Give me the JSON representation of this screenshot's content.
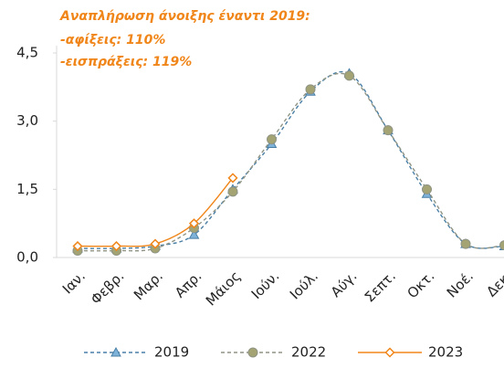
{
  "chart_data": {
    "type": "line",
    "annotation": [
      "Αναπλήρωση άνοιξης έναντι 2019:",
      "-αφίξεις: 110%",
      "-εισπράξεις: 119%"
    ],
    "categories": [
      "Ιαν.",
      "Φεβρ.",
      "Μαρ.",
      "Απρ.",
      "Μάιος",
      "Ιούν.",
      "Ιούλ.",
      "Αύγ.",
      "Σεπτ.",
      "Οκτ.",
      "Νοέ.",
      "Δεκ."
    ],
    "series": [
      {
        "name": "2019",
        "color": "#4a7fa5",
        "marker": "triangle",
        "dash": true,
        "values": [
          0.2,
          0.2,
          0.25,
          0.5,
          1.5,
          2.5,
          3.65,
          4.05,
          2.8,
          1.4,
          0.3,
          0.25
        ]
      },
      {
        "name": "2022",
        "color": "#8f9484",
        "marker": "circle",
        "dash": true,
        "values": [
          0.15,
          0.15,
          0.2,
          0.65,
          1.45,
          2.6,
          3.7,
          4.0,
          2.8,
          1.5,
          0.3,
          0.27
        ]
      },
      {
        "name": "2023",
        "color": "#f0861a",
        "marker": "diamond",
        "dash": false,
        "values": [
          0.25,
          0.25,
          0.3,
          0.75,
          1.75,
          null,
          null,
          null,
          null,
          null,
          null,
          null
        ]
      }
    ],
    "ylim": [
      0,
      4.5
    ],
    "yticks": [
      {
        "value": 0,
        "label": "0,0"
      },
      {
        "value": 1.5,
        "label": "1,5"
      },
      {
        "value": 3,
        "label": "3,0"
      },
      {
        "value": 4.5,
        "label": "4,5"
      }
    ],
    "grid": false,
    "legend": "bottom"
  }
}
